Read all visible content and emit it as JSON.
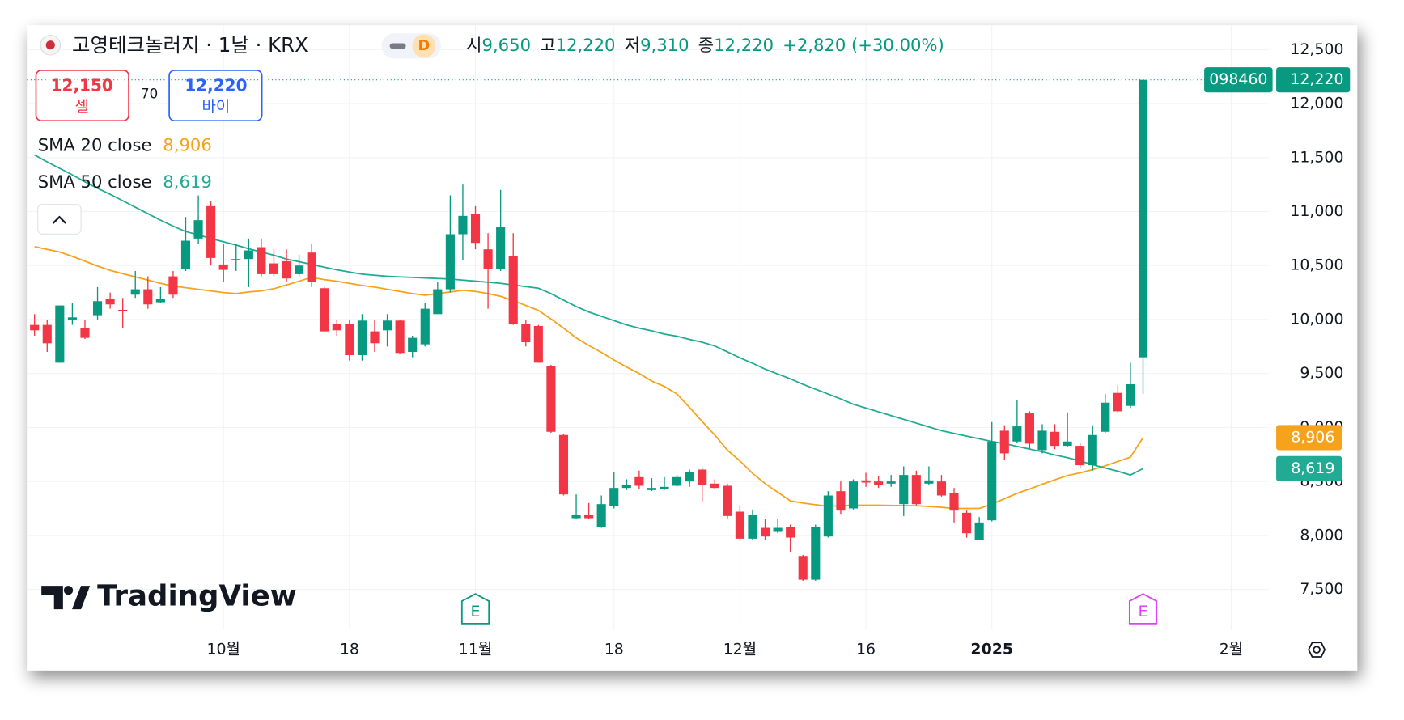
{
  "chart_data": {
    "type": "candlestick",
    "title": "고영테크놀러지 · 1날 · KRX",
    "interval_badge": "D",
    "ohlc_legend": [
      {
        "label": "시",
        "value": "9,650"
      },
      {
        "label": "고",
        "value": "12,220"
      },
      {
        "label": "저",
        "value": "9,310"
      },
      {
        "label": "종",
        "value": "12,220"
      }
    ],
    "change": "+2,820 (+30.00%)",
    "sell": {
      "price": "12,150",
      "label": "셀"
    },
    "spread": "70",
    "buy": {
      "price": "12,220",
      "label": "바이"
    },
    "up_color": "#089981",
    "down_color": "#f23645",
    "candles": {
      "open": [
        9950,
        9950,
        9600,
        10000,
        9920,
        10040,
        10190,
        10090,
        10230,
        10280,
        10160,
        10400,
        10470,
        10750,
        11050,
        10510,
        10550,
        10560,
        10670,
        10520,
        10540,
        10420,
        10620,
        10290,
        9960,
        9960,
        9670,
        9890,
        9900,
        9990,
        9700,
        9770,
        10050,
        10280,
        10790,
        10980,
        10650,
        10470,
        10590,
        9960,
        9940,
        9570,
        8930,
        8160,
        8190,
        8080,
        8270,
        8440,
        8540,
        8420,
        8430,
        8460,
        8500,
        8610,
        8480,
        8460,
        8220,
        7970,
        8070,
        8040,
        8080,
        7810,
        7590,
        7990,
        8410,
        8250,
        8510,
        8500,
        8480,
        8290,
        8560,
        8480,
        8500,
        8390,
        8210,
        7960,
        8140,
        8970,
        8870,
        9130,
        8790,
        8960,
        8830,
        8830,
        8650,
        8960,
        9320,
        9200,
        9650
      ],
      "high": [
        10050,
        10000,
        10130,
        10150,
        10000,
        10300,
        10250,
        10200,
        10450,
        10400,
        10300,
        10450,
        10950,
        11150,
        11100,
        10700,
        10700,
        10750,
        10750,
        10650,
        10650,
        10600,
        10700,
        10300,
        10000,
        10000,
        10050,
        10000,
        10050,
        10000,
        9850,
        10150,
        10350,
        11150,
        11250,
        11050,
        10800,
        11200,
        10800,
        10000,
        9950,
        9580,
        8940,
        8380,
        8300,
        8370,
        8590,
        8520,
        8600,
        8530,
        8540,
        8560,
        8610,
        8620,
        8520,
        8480,
        8280,
        8240,
        8150,
        8150,
        8100,
        7820,
        8100,
        8410,
        8500,
        8520,
        8580,
        8550,
        8560,
        8640,
        8600,
        8640,
        8560,
        8440,
        8230,
        8170,
        9050,
        9020,
        9250,
        9150,
        9030,
        9030,
        9140,
        8860,
        9020,
        9310,
        9390,
        9600,
        12220
      ],
      "low": [
        9850,
        9700,
        9600,
        9950,
        9820,
        10000,
        10100,
        9920,
        10200,
        10100,
        10150,
        10200,
        10450,
        10700,
        10500,
        10350,
        10450,
        10300,
        10400,
        10400,
        10350,
        10400,
        10300,
        9880,
        9850,
        9620,
        9620,
        9700,
        9750,
        9680,
        9650,
        9750,
        10050,
        10250,
        10550,
        10650,
        10100,
        10450,
        9950,
        9750,
        9600,
        8950,
        8370,
        8150,
        8150,
        8070,
        8250,
        8420,
        8430,
        8410,
        8420,
        8450,
        8450,
        8310,
        8430,
        8150,
        7960,
        7960,
        7960,
        8020,
        7850,
        7580,
        7580,
        7980,
        8200,
        8240,
        8450,
        8440,
        8450,
        8180,
        8280,
        8470,
        8360,
        8120,
        7980,
        7960,
        8130,
        8700,
        8860,
        8800,
        8760,
        8800,
        8820,
        8620,
        8600,
        8950,
        9140,
        9180,
        9310
      ],
      "close": [
        9900,
        9780,
        10130,
        10020,
        9830,
        10170,
        10140,
        10080,
        10280,
        10140,
        10190,
        10230,
        10730,
        10920,
        10570,
        10460,
        10560,
        10640,
        10420,
        10420,
        10380,
        10500,
        10350,
        9890,
        9900,
        9670,
        9990,
        9780,
        9990,
        9690,
        9830,
        10100,
        10280,
        10790,
        10960,
        10710,
        10470,
        10860,
        9960,
        9790,
        9600,
        8960,
        8380,
        8190,
        8160,
        8290,
        8440,
        8470,
        8460,
        8440,
        8450,
        8540,
        8590,
        8470,
        8440,
        8180,
        7970,
        8190,
        7990,
        8070,
        7980,
        7590,
        8080,
        8370,
        8230,
        8500,
        8490,
        8470,
        8500,
        8560,
        8290,
        8510,
        8370,
        8230,
        8020,
        8120,
        8870,
        8760,
        9010,
        8850,
        8970,
        8830,
        8870,
        8650,
        8930,
        9230,
        9150,
        9400,
        12220
      ]
    },
    "series": [
      {
        "name": "SMA 20 close",
        "color": "#f7a21b",
        "last_label": "8,906",
        "values": [
          10675,
          10650,
          10625,
          10585,
          10540,
          10495,
          10455,
          10425,
          10395,
          10365,
          10335,
          10310,
          10295,
          10280,
          10265,
          10250,
          10240,
          10255,
          10265,
          10285,
          10320,
          10355,
          10390,
          10370,
          10355,
          10335,
          10315,
          10300,
          10280,
          10260,
          10240,
          10225,
          10240,
          10255,
          10270,
          10260,
          10240,
          10215,
          10175,
          10130,
          10085,
          10005,
          9920,
          9830,
          9760,
          9695,
          9625,
          9560,
          9500,
          9430,
          9380,
          9310,
          9185,
          9055,
          8930,
          8790,
          8690,
          8575,
          8480,
          8400,
          8320,
          8300,
          8285,
          8270,
          8275,
          8280,
          8280,
          8280,
          8278,
          8276,
          8275,
          8268,
          8260,
          8250,
          8250,
          8250,
          8290,
          8340,
          8390,
          8430,
          8475,
          8515,
          8555,
          8580,
          8610,
          8645,
          8685,
          8725,
          8906
        ]
      },
      {
        "name": "SMA 50 close",
        "color": "#22ab94",
        "last_label": "8,619",
        "values": [
          11525,
          11460,
          11400,
          11340,
          11275,
          11215,
          11160,
          11100,
          11040,
          10980,
          10920,
          10865,
          10815,
          10785,
          10750,
          10720,
          10690,
          10655,
          10625,
          10595,
          10560,
          10535,
          10510,
          10485,
          10460,
          10440,
          10420,
          10410,
          10400,
          10395,
          10390,
          10385,
          10380,
          10375,
          10365,
          10355,
          10345,
          10335,
          10320,
          10305,
          10290,
          10240,
          10180,
          10120,
          10070,
          10030,
          9990,
          9950,
          9920,
          9895,
          9865,
          9845,
          9815,
          9790,
          9755,
          9700,
          9645,
          9595,
          9540,
          9495,
          9450,
          9400,
          9355,
          9310,
          9265,
          9215,
          9180,
          9145,
          9110,
          9075,
          9040,
          9005,
          8970,
          8945,
          8920,
          8895,
          8870,
          8850,
          8825,
          8800,
          8775,
          8745,
          8720,
          8690,
          8655,
          8625,
          8595,
          8560,
          8619
        ]
      }
    ],
    "ylim": [
      7125,
      12725
    ],
    "yticks": [
      {
        "value": 7500,
        "label": "7,500"
      },
      {
        "value": 8000,
        "label": "8,000"
      },
      {
        "value": 8500,
        "label": "8,500"
      },
      {
        "value": 9000,
        "label": "9,000"
      },
      {
        "value": 9500,
        "label": "9,500"
      },
      {
        "value": 10000,
        "label": "10,000"
      },
      {
        "value": 10500,
        "label": "10,500"
      },
      {
        "value": 11000,
        "label": "11,000"
      },
      {
        "value": 11500,
        "label": "11,500"
      },
      {
        "value": 12000,
        "label": "12,000"
      },
      {
        "value": 12500,
        "label": "12,500"
      }
    ],
    "xlim": [
      -0.6,
      98
    ],
    "xticks": [
      {
        "value": 15,
        "label": "10월"
      },
      {
        "value": 25,
        "label": "18"
      },
      {
        "value": 35,
        "label": "11월"
      },
      {
        "value": 46,
        "label": "18"
      },
      {
        "value": 56,
        "label": "12월"
      },
      {
        "value": 66,
        "label": "16"
      },
      {
        "value": 76,
        "label": "2025"
      },
      {
        "value": 95,
        "label": "2월"
      }
    ],
    "grid": true,
    "symbol_badge": "098460",
    "last_price_label": "12,220",
    "events": [
      {
        "label": "E",
        "x": 35,
        "color": "#089981"
      },
      {
        "label": "E",
        "x": 88,
        "color": "#e040fb"
      }
    ],
    "watermark": "TradingView"
  }
}
